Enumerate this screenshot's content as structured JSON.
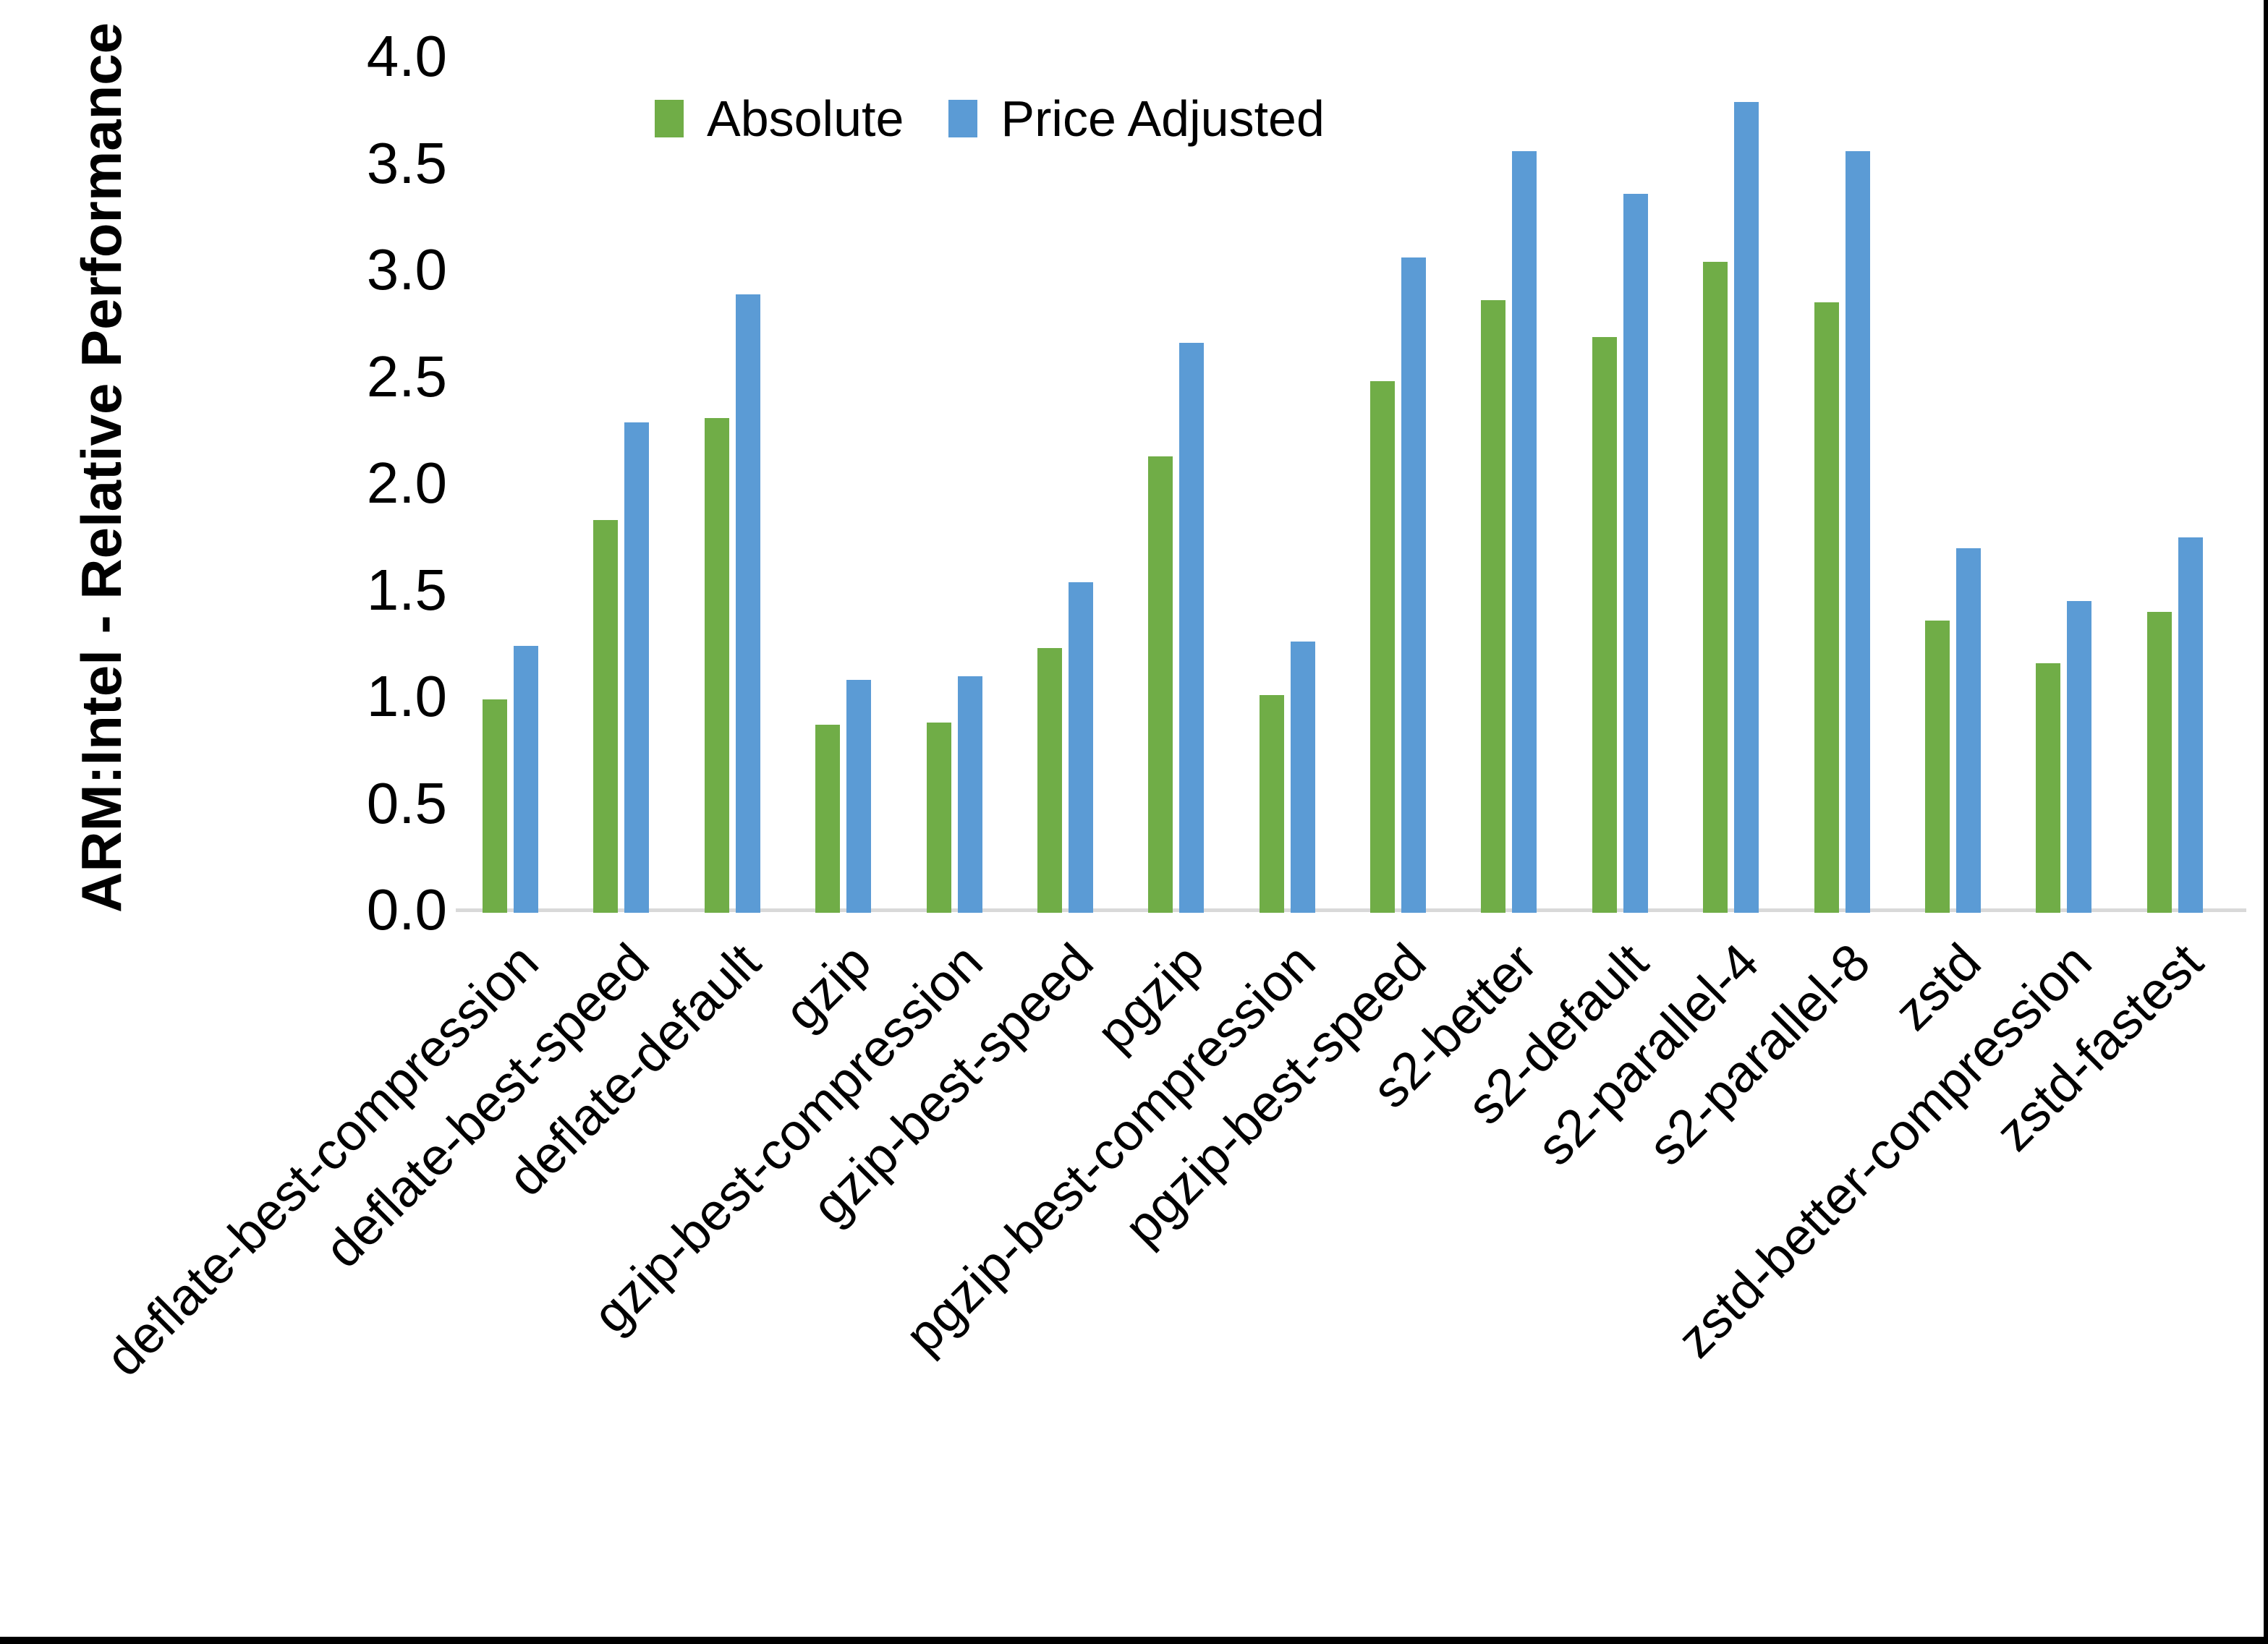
{
  "figure": {
    "background": "#ffffff",
    "border_color": "#000000"
  },
  "axis": {
    "line_color": "#d9d9d9",
    "text_color": "#000000",
    "ytick_labels": [
      "4.0",
      "3.5",
      "3.0",
      "2.5",
      "2.0",
      "1.5",
      "1.0",
      "0.5",
      "0.0"
    ]
  },
  "chart_data": {
    "type": "bar",
    "title": "",
    "xlabel": "",
    "ylabel": "ARM:Intel - Relative Performance",
    "ylim": [
      0.0,
      4.0
    ],
    "ytick_step": 0.5,
    "grid": false,
    "legend_position": "top-center",
    "categories": [
      "deflate-best-compression",
      "deflate-best-speed",
      "deflate-default",
      "gzip",
      "gzip-best-compression",
      "gzip-best-speed",
      "pgzip",
      "pgzip-best-compression",
      "pgzip-best-speed",
      "s2-better",
      "s2-default",
      "s2-parallel-4",
      "s2-parallel-8",
      "zstd",
      "zstd-better-compression",
      "zstd-fastest"
    ],
    "series": [
      {
        "name": "Absolute",
        "color": "#70AD47",
        "values": [
          1.0,
          1.84,
          2.32,
          0.88,
          0.89,
          1.24,
          2.14,
          1.02,
          2.49,
          2.87,
          2.7,
          3.05,
          2.86,
          1.37,
          1.17,
          1.41
        ]
      },
      {
        "name": "Price Adjusted",
        "color": "#5B9BD5",
        "values": [
          1.25,
          2.3,
          2.9,
          1.09,
          1.11,
          1.55,
          2.67,
          1.27,
          3.07,
          3.57,
          3.37,
          3.8,
          3.57,
          1.71,
          1.46,
          1.76
        ]
      }
    ]
  }
}
